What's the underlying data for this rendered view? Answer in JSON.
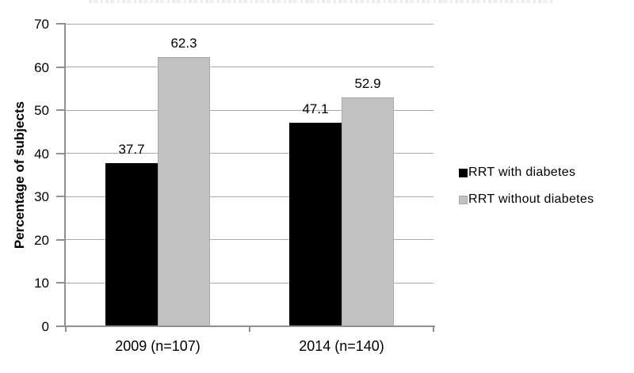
{
  "chart_data": {
    "type": "bar",
    "ylabel": "Percentage of subjects",
    "xlabel": "",
    "categories": [
      "2009 (n=107)",
      "2014 (n=140)"
    ],
    "series": [
      {
        "name": "RRT with diabetes",
        "color": "#000000",
        "border": "#000000",
        "values": [
          37.7,
          47.1
        ]
      },
      {
        "name": "RRT without diabetes",
        "color": "#c1c1c1",
        "border": "#a9a9a9",
        "values": [
          62.3,
          52.9
        ]
      }
    ],
    "ylim": [
      0,
      70
    ],
    "yticks": [
      0,
      10,
      20,
      30,
      40,
      50,
      60,
      70
    ],
    "grid": true,
    "value_labels": true,
    "legend_position": "right",
    "note": "title cropped off at top edge of screenshot"
  },
  "colors": {
    "background": "#ffffff",
    "axis": "#8f8f8f",
    "gridline": "#a9a9a9",
    "text": "#000000"
  }
}
